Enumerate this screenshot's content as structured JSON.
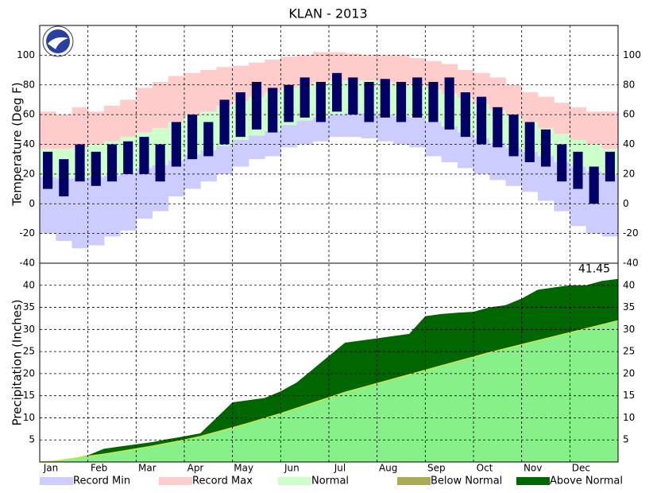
{
  "title": "KLAN - 2013",
  "legend": [
    {
      "name": "Record Min",
      "color": "#ccccff"
    },
    {
      "name": "Record Max",
      "color": "#ffcccc"
    },
    {
      "name": "Normal",
      "color": "#ccffcc"
    },
    {
      "name": "Below Normal",
      "color": "#aaaa55"
    },
    {
      "name": "Above Normal",
      "color": "#006600"
    }
  ],
  "chart_data": [
    {
      "type": "temperature_bands",
      "y_label": "Temperature (Deg F)",
      "categories": [
        "Jan",
        null,
        null,
        "Feb",
        null,
        null,
        "Mar",
        null,
        null,
        "Apr",
        null,
        null,
        "May",
        null,
        null,
        "Jun",
        null,
        null,
        "Jul",
        null,
        null,
        "Aug",
        null,
        null,
        "Sep",
        null,
        null,
        "Oct",
        null,
        null,
        "Nov",
        null,
        null,
        "Dec",
        null,
        null
      ],
      "ylim": [
        -40,
        120
      ],
      "yticks": [
        -40,
        -20,
        0,
        20,
        40,
        60,
        80,
        100
      ],
      "grid": true,
      "observed_color": "#000066",
      "record_max": [
        62,
        60,
        65,
        62,
        66,
        70,
        78,
        82,
        86,
        88,
        90,
        92,
        93,
        95,
        97,
        99,
        100,
        102,
        102,
        101,
        100,
        100,
        100,
        98,
        96,
        94,
        90,
        88,
        85,
        80,
        75,
        72,
        68,
        65,
        62,
        62
      ],
      "normal_high": [
        37,
        37,
        38,
        40,
        42,
        45,
        48,
        51,
        55,
        59,
        62,
        66,
        69,
        72,
        75,
        78,
        80,
        82,
        83,
        83,
        83,
        82,
        81,
        80,
        77,
        74,
        71,
        67,
        63,
        59,
        55,
        51,
        47,
        43,
        40,
        37
      ],
      "normal_low": [
        18,
        17,
        17,
        18,
        19,
        21,
        24,
        26,
        29,
        33,
        36,
        39,
        43,
        46,
        49,
        53,
        56,
        58,
        60,
        61,
        61,
        60,
        59,
        58,
        55,
        52,
        48,
        44,
        41,
        38,
        35,
        32,
        28,
        25,
        22,
        20
      ],
      "record_min": [
        -20,
        -25,
        -30,
        -28,
        -22,
        -18,
        -10,
        -5,
        5,
        10,
        15,
        20,
        25,
        30,
        32,
        38,
        40,
        42,
        45,
        45,
        44,
        42,
        40,
        38,
        32,
        28,
        24,
        20,
        16,
        12,
        8,
        2,
        -5,
        -15,
        -20,
        -22
      ],
      "observed_high": [
        35,
        30,
        40,
        35,
        40,
        42,
        45,
        40,
        55,
        60,
        55,
        70,
        75,
        82,
        78,
        80,
        85,
        82,
        88,
        85,
        82,
        84,
        82,
        85,
        82,
        85,
        75,
        72,
        65,
        60,
        55,
        50,
        40,
        35,
        25,
        35
      ],
      "observed_low": [
        10,
        5,
        15,
        12,
        15,
        20,
        20,
        15,
        25,
        30,
        32,
        40,
        45,
        50,
        48,
        55,
        58,
        55,
        62,
        60,
        55,
        58,
        55,
        58,
        55,
        50,
        45,
        40,
        38,
        32,
        28,
        25,
        15,
        10,
        0,
        15
      ]
    },
    {
      "type": "cumulative_area",
      "y_label": "Precipitation (Inches)",
      "ylim": [
        0,
        45
      ],
      "yticks": [
        5,
        10,
        15,
        20,
        25,
        30,
        35,
        40
      ],
      "grid": true,
      "normal_fill": "#88f088",
      "normal_line": "#e0e040",
      "actual": [
        0.3,
        0.8,
        1.5,
        3.0,
        3.5,
        4.0,
        4.5,
        5.2,
        5.8,
        6.5,
        10,
        13.5,
        14,
        14.5,
        16,
        18,
        21,
        24,
        27,
        27.5,
        28,
        28.5,
        29,
        33,
        33.5,
        33.8,
        34,
        35,
        35.5,
        37,
        39,
        39.5,
        40,
        40,
        41,
        41.45
      ],
      "normal": [
        0.3,
        0.8,
        1.3,
        1.8,
        2.4,
        3.0,
        3.6,
        4.3,
        5.0,
        5.8,
        6.8,
        7.8,
        8.8,
        9.9,
        11,
        12.2,
        13.4,
        14.6,
        15.8,
        16.8,
        17.8,
        18.8,
        19.8,
        20.8,
        21.8,
        22.8,
        23.8,
        24.8,
        25.7,
        26.6,
        27.5,
        28.4,
        29.3,
        30.2,
        31.1,
        32
      ]
    }
  ]
}
